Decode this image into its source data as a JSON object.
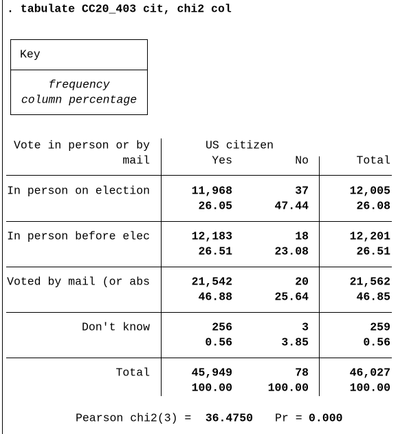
{
  "command": ". tabulate CC20_403 cit, chi2 col",
  "key": {
    "title": "Key",
    "lines": [
      "frequency",
      "column percentage"
    ]
  },
  "table": {
    "row_header": [
      "Vote in person or by",
      "mail"
    ],
    "col_group": "US citizen",
    "columns": [
      "Yes",
      "No",
      "Total"
    ],
    "rows": [
      {
        "label": "In person on election",
        "freq": [
          "11,968",
          "37",
          "12,005"
        ],
        "pct": [
          "26.05",
          "47.44",
          "26.08"
        ]
      },
      {
        "label": "In person before elec",
        "freq": [
          "12,183",
          "18",
          "12,201"
        ],
        "pct": [
          "26.51",
          "23.08",
          "26.51"
        ]
      },
      {
        "label": "Voted by mail (or abs",
        "freq": [
          "21,542",
          "20",
          "21,562"
        ],
        "pct": [
          "46.88",
          "25.64",
          "46.85"
        ]
      },
      {
        "label": "Don't know",
        "freq": [
          "256",
          "3",
          "259"
        ],
        "pct": [
          "0.56",
          "3.85",
          "0.56"
        ]
      },
      {
        "label": "Total",
        "freq": [
          "45,949",
          "78",
          "46,027"
        ],
        "pct": [
          "100.00",
          "100.00",
          "100.00"
        ]
      }
    ]
  },
  "stats": {
    "label": "Pearson chi2(3) =",
    "chi2": "36.4750",
    "pr_label": "Pr =",
    "pr": "0.000"
  }
}
